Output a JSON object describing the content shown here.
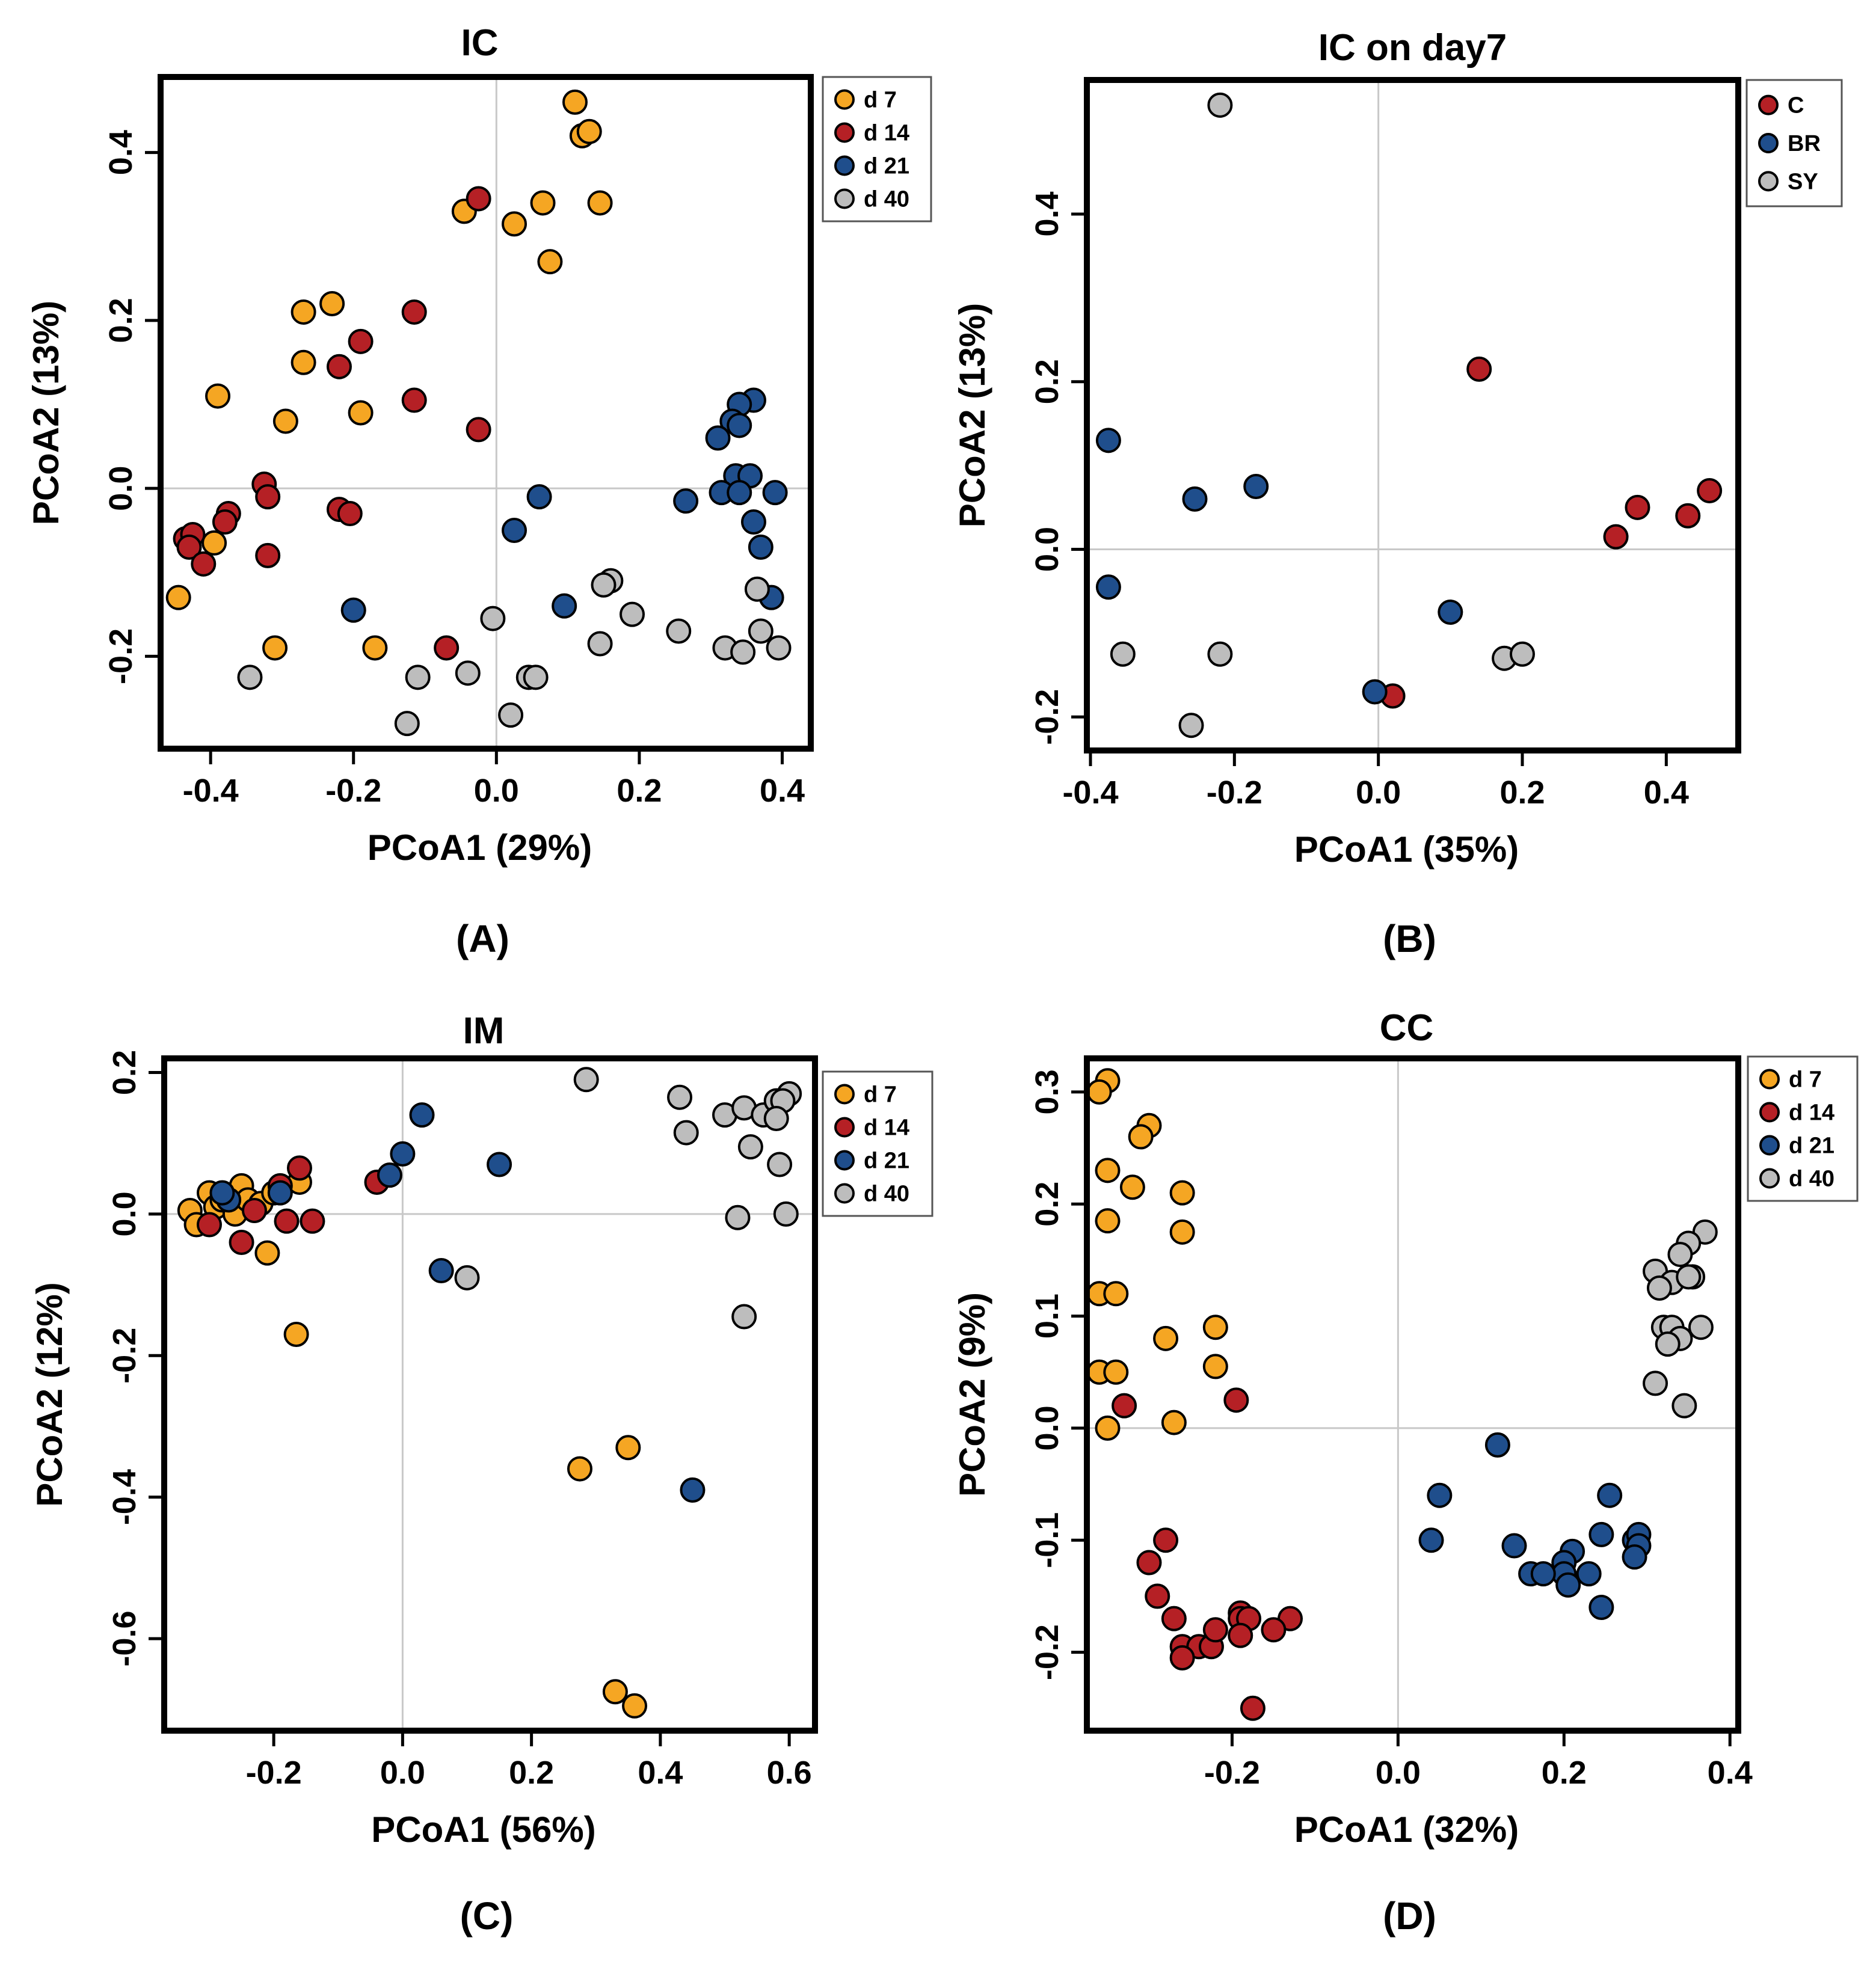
{
  "figure": {
    "panel_tags": [
      "(A)",
      "(B)",
      "(C)",
      "(D)"
    ]
  },
  "colors": {
    "d7": "#F5A623",
    "d14": "#B52025",
    "d21": "#1F4E8C",
    "d40": "#BDBDBD",
    "C": "#B52025",
    "BR": "#1F4E8C",
    "SY": "#BDBDBD"
  },
  "chart_data": [
    {
      "type": "scatter",
      "title": "IC",
      "xlabel": "PCoA1 (29%)",
      "ylabel": "PCoA2 (13%)",
      "xlim": [
        -0.47,
        0.44
      ],
      "ylim": [
        -0.31,
        0.49
      ],
      "xticks": [
        -0.4,
        -0.2,
        0.0,
        0.2,
        0.4
      ],
      "xtick_labels": [
        "-0.4",
        "-0.2",
        "0.0",
        "0.2",
        "0.4"
      ],
      "yticks": [
        -0.2,
        0.0,
        0.2,
        0.4
      ],
      "ytick_labels": [
        "-0.2",
        "0.0",
        "0.2",
        "0.4"
      ],
      "legend_position": "top-right",
      "series": [
        {
          "name": "d 7",
          "color_key": "d7",
          "points": [
            [
              0.11,
              0.46
            ],
            [
              0.12,
              0.42
            ],
            [
              0.13,
              0.425
            ],
            [
              -0.045,
              0.33
            ],
            [
              0.025,
              0.315
            ],
            [
              0.065,
              0.34
            ],
            [
              0.145,
              0.34
            ],
            [
              0.075,
              0.27
            ],
            [
              -0.23,
              0.22
            ],
            [
              -0.27,
              0.21
            ],
            [
              -0.27,
              0.15
            ],
            [
              -0.39,
              0.11
            ],
            [
              -0.19,
              0.09
            ],
            [
              -0.295,
              0.08
            ],
            [
              -0.395,
              -0.065
            ],
            [
              -0.445,
              -0.13
            ],
            [
              -0.31,
              -0.19
            ],
            [
              -0.17,
              -0.19
            ]
          ]
        },
        {
          "name": "d 14",
          "color_key": "d14",
          "points": [
            [
              -0.025,
              0.345
            ],
            [
              -0.115,
              0.21
            ],
            [
              -0.19,
              0.175
            ],
            [
              -0.22,
              0.145
            ],
            [
              -0.115,
              0.105
            ],
            [
              -0.025,
              0.07
            ],
            [
              -0.325,
              0.005
            ],
            [
              -0.32,
              -0.01
            ],
            [
              -0.375,
              -0.03
            ],
            [
              -0.38,
              -0.04
            ],
            [
              -0.435,
              -0.06
            ],
            [
              -0.425,
              -0.055
            ],
            [
              -0.43,
              -0.07
            ],
            [
              -0.41,
              -0.09
            ],
            [
              -0.32,
              -0.08
            ],
            [
              -0.22,
              -0.025
            ],
            [
              -0.205,
              -0.03
            ],
            [
              -0.07,
              -0.19
            ]
          ]
        },
        {
          "name": "d 21",
          "color_key": "d21",
          "points": [
            [
              0.36,
              0.105
            ],
            [
              0.34,
              0.1
            ],
            [
              0.33,
              0.08
            ],
            [
              0.34,
              0.075
            ],
            [
              0.31,
              0.06
            ],
            [
              0.335,
              0.015
            ],
            [
              0.355,
              0.015
            ],
            [
              0.265,
              -0.015
            ],
            [
              0.315,
              -0.005
            ],
            [
              0.34,
              -0.005
            ],
            [
              0.39,
              -0.005
            ],
            [
              0.06,
              -0.01
            ],
            [
              0.025,
              -0.05
            ],
            [
              0.36,
              -0.04
            ],
            [
              0.37,
              -0.07
            ],
            [
              0.385,
              -0.13
            ],
            [
              0.095,
              -0.14
            ],
            [
              -0.2,
              -0.145
            ]
          ]
        },
        {
          "name": "d 40",
          "color_key": "d40",
          "points": [
            [
              0.16,
              -0.11
            ],
            [
              0.15,
              -0.115
            ],
            [
              0.365,
              -0.12
            ],
            [
              0.19,
              -0.15
            ],
            [
              -0.005,
              -0.155
            ],
            [
              0.255,
              -0.17
            ],
            [
              0.37,
              -0.17
            ],
            [
              0.145,
              -0.185
            ],
            [
              0.32,
              -0.19
            ],
            [
              0.345,
              -0.195
            ],
            [
              0.395,
              -0.19
            ],
            [
              -0.04,
              -0.22
            ],
            [
              0.045,
              -0.225
            ],
            [
              0.055,
              -0.225
            ],
            [
              -0.345,
              -0.225
            ],
            [
              -0.11,
              -0.225
            ],
            [
              -0.125,
              -0.28
            ],
            [
              0.02,
              -0.27
            ]
          ]
        }
      ]
    },
    {
      "type": "scatter",
      "title": "IC on day7",
      "xlabel": "PCoA1 (35%)",
      "ylabel": "PCoA2 (13%)",
      "xlim": [
        -0.405,
        0.5
      ],
      "ylim": [
        -0.24,
        0.56
      ],
      "xticks": [
        -0.4,
        -0.2,
        0.0,
        0.2,
        0.4
      ],
      "xtick_labels": [
        "-0.4",
        "-0.2",
        "0.0",
        "0.2",
        "0.4"
      ],
      "yticks": [
        -0.2,
        0.0,
        0.2,
        0.4
      ],
      "ytick_labels": [
        "-0.2",
        "0.0",
        "0.2",
        "0.4"
      ],
      "legend_position": "top-right",
      "series": [
        {
          "name": "C",
          "color_key": "C",
          "points": [
            [
              0.14,
              0.215
            ],
            [
              0.46,
              0.07
            ],
            [
              0.36,
              0.05
            ],
            [
              0.43,
              0.04
            ],
            [
              0.33,
              0.015
            ],
            [
              0.02,
              -0.175
            ]
          ]
        },
        {
          "name": "BR",
          "color_key": "BR",
          "points": [
            [
              -0.375,
              0.13
            ],
            [
              -0.255,
              0.06
            ],
            [
              -0.17,
              0.075
            ],
            [
              -0.375,
              -0.045
            ],
            [
              0.1,
              -0.075
            ],
            [
              -0.005,
              -0.17
            ]
          ]
        },
        {
          "name": "SY",
          "color_key": "SY",
          "points": [
            [
              -0.22,
              0.53
            ],
            [
              -0.355,
              -0.125
            ],
            [
              -0.22,
              -0.125
            ],
            [
              0.175,
              -0.13
            ],
            [
              0.2,
              -0.125
            ],
            [
              -0.26,
              -0.21
            ]
          ]
        }
      ]
    },
    {
      "type": "scatter",
      "title": "IM",
      "xlabel": "PCoA1 (56%)",
      "ylabel": "PCoA2 (12%)",
      "xlim": [
        -0.37,
        0.64
      ],
      "ylim": [
        -0.73,
        0.22
      ],
      "xticks": [
        -0.2,
        0.0,
        0.2,
        0.4,
        0.6
      ],
      "xtick_labels": [
        "-0.2",
        "0.0",
        "0.2",
        "0.4",
        "0.6"
      ],
      "yticks": [
        -0.6,
        -0.4,
        -0.2,
        0.0,
        0.2
      ],
      "ytick_labels": [
        "-0.6",
        "-0.4",
        "-0.2",
        "0.0",
        "0.2"
      ],
      "legend_position": "top-right",
      "series": [
        {
          "name": "d 7",
          "color_key": "d7",
          "points": [
            [
              -0.33,
              0.005
            ],
            [
              -0.32,
              -0.015
            ],
            [
              -0.3,
              0.03
            ],
            [
              -0.29,
              0.01
            ],
            [
              -0.28,
              0.02
            ],
            [
              -0.26,
              0.0
            ],
            [
              -0.25,
              0.04
            ],
            [
              -0.24,
              0.02
            ],
            [
              -0.22,
              0.015
            ],
            [
              -0.2,
              0.03
            ],
            [
              -0.16,
              0.045
            ],
            [
              -0.21,
              -0.055
            ],
            [
              -0.165,
              -0.17
            ],
            [
              0.275,
              -0.36
            ],
            [
              0.35,
              -0.33
            ],
            [
              0.33,
              -0.675
            ],
            [
              0.36,
              -0.695
            ]
          ]
        },
        {
          "name": "d 14",
          "color_key": "d14",
          "points": [
            [
              -0.16,
              0.065
            ],
            [
              -0.3,
              -0.015
            ],
            [
              -0.25,
              -0.04
            ],
            [
              -0.18,
              -0.01
            ],
            [
              -0.14,
              -0.01
            ],
            [
              -0.23,
              0.005
            ],
            [
              -0.19,
              0.04
            ],
            [
              -0.04,
              0.045
            ]
          ]
        },
        {
          "name": "d 21",
          "color_key": "d21",
          "points": [
            [
              0.03,
              0.14
            ],
            [
              0.0,
              0.085
            ],
            [
              -0.02,
              0.055
            ],
            [
              0.15,
              0.07
            ],
            [
              0.06,
              -0.08
            ],
            [
              0.45,
              -0.39
            ],
            [
              -0.27,
              0.02
            ],
            [
              -0.19,
              0.03
            ],
            [
              -0.28,
              0.03
            ]
          ]
        },
        {
          "name": "d 40",
          "color_key": "d40",
          "points": [
            [
              0.285,
              0.19
            ],
            [
              0.43,
              0.165
            ],
            [
              0.5,
              0.14
            ],
            [
              0.53,
              0.15
            ],
            [
              0.56,
              0.14
            ],
            [
              0.58,
              0.16
            ],
            [
              0.6,
              0.17
            ],
            [
              0.59,
              0.16
            ],
            [
              0.58,
              0.135
            ],
            [
              0.44,
              0.115
            ],
            [
              0.54,
              0.095
            ],
            [
              0.585,
              0.07
            ],
            [
              0.52,
              -0.005
            ],
            [
              0.595,
              0.0
            ],
            [
              0.53,
              -0.145
            ],
            [
              0.1,
              -0.09
            ]
          ]
        }
      ]
    },
    {
      "type": "scatter",
      "title": "CC",
      "xlabel": "PCoA1 (32%)",
      "ylabel": "PCoA2 (9%)",
      "xlim": [
        -0.375,
        0.41
      ],
      "ylim": [
        -0.27,
        0.33
      ],
      "xticks": [
        -0.2,
        0.0,
        0.2,
        0.4
      ],
      "xtick_labels": [
        "-0.2",
        "0.0",
        "0.2",
        "0.4"
      ],
      "yticks": [
        -0.2,
        -0.1,
        0.0,
        0.1,
        0.2,
        0.3
      ],
      "ytick_labels": [
        "-0.2",
        "-0.1",
        "0.0",
        "0.1",
        "0.2",
        "0.3"
      ],
      "legend_position": "top-right",
      "series": [
        {
          "name": "d 7",
          "color_key": "d7",
          "points": [
            [
              -0.35,
              0.31
            ],
            [
              -0.36,
              0.3
            ],
            [
              -0.3,
              0.27
            ],
            [
              -0.31,
              0.26
            ],
            [
              -0.35,
              0.23
            ],
            [
              -0.32,
              0.215
            ],
            [
              -0.26,
              0.21
            ],
            [
              -0.35,
              0.185
            ],
            [
              -0.26,
              0.175
            ],
            [
              -0.36,
              0.12
            ],
            [
              -0.34,
              0.12
            ],
            [
              -0.22,
              0.09
            ],
            [
              -0.28,
              0.08
            ],
            [
              -0.22,
              0.055
            ],
            [
              -0.36,
              0.05
            ],
            [
              -0.34,
              0.05
            ],
            [
              -0.27,
              0.005
            ],
            [
              -0.35,
              0.0
            ]
          ]
        },
        {
          "name": "d 14",
          "color_key": "d14",
          "points": [
            [
              -0.33,
              0.02
            ],
            [
              -0.195,
              0.025
            ],
            [
              -0.28,
              -0.1
            ],
            [
              -0.3,
              -0.12
            ],
            [
              -0.29,
              -0.15
            ],
            [
              -0.27,
              -0.17
            ],
            [
              -0.26,
              -0.195
            ],
            [
              -0.24,
              -0.195
            ],
            [
              -0.225,
              -0.195
            ],
            [
              -0.26,
              -0.205
            ],
            [
              -0.19,
              -0.165
            ],
            [
              -0.19,
              -0.17
            ],
            [
              -0.18,
              -0.17
            ],
            [
              -0.19,
              -0.185
            ],
            [
              -0.22,
              -0.18
            ],
            [
              -0.13,
              -0.17
            ],
            [
              -0.15,
              -0.18
            ],
            [
              -0.175,
              -0.25
            ]
          ]
        },
        {
          "name": "d 21",
          "color_key": "d21",
          "points": [
            [
              0.12,
              -0.015
            ],
            [
              0.05,
              -0.06
            ],
            [
              0.04,
              -0.1
            ],
            [
              0.14,
              -0.105
            ],
            [
              0.255,
              -0.06
            ],
            [
              0.245,
              -0.095
            ],
            [
              0.285,
              -0.1
            ],
            [
              0.29,
              -0.095
            ],
            [
              0.29,
              -0.105
            ],
            [
              0.285,
              -0.115
            ],
            [
              0.21,
              -0.11
            ],
            [
              0.2,
              -0.12
            ],
            [
              0.23,
              -0.13
            ],
            [
              0.2,
              -0.13
            ],
            [
              0.16,
              -0.13
            ],
            [
              0.175,
              -0.13
            ],
            [
              0.205,
              -0.14
            ],
            [
              0.245,
              -0.16
            ]
          ]
        },
        {
          "name": "d 40",
          "color_key": "d40",
          "points": [
            [
              0.37,
              0.175
            ],
            [
              0.35,
              0.165
            ],
            [
              0.34,
              0.155
            ],
            [
              0.31,
              0.14
            ],
            [
              0.33,
              0.13
            ],
            [
              0.355,
              0.135
            ],
            [
              0.315,
              0.125
            ],
            [
              0.35,
              0.135
            ],
            [
              0.32,
              0.09
            ],
            [
              0.33,
              0.09
            ],
            [
              0.365,
              0.09
            ],
            [
              0.34,
              0.08
            ],
            [
              0.325,
              0.075
            ],
            [
              0.31,
              0.04
            ],
            [
              0.345,
              0.02
            ]
          ]
        }
      ]
    }
  ]
}
